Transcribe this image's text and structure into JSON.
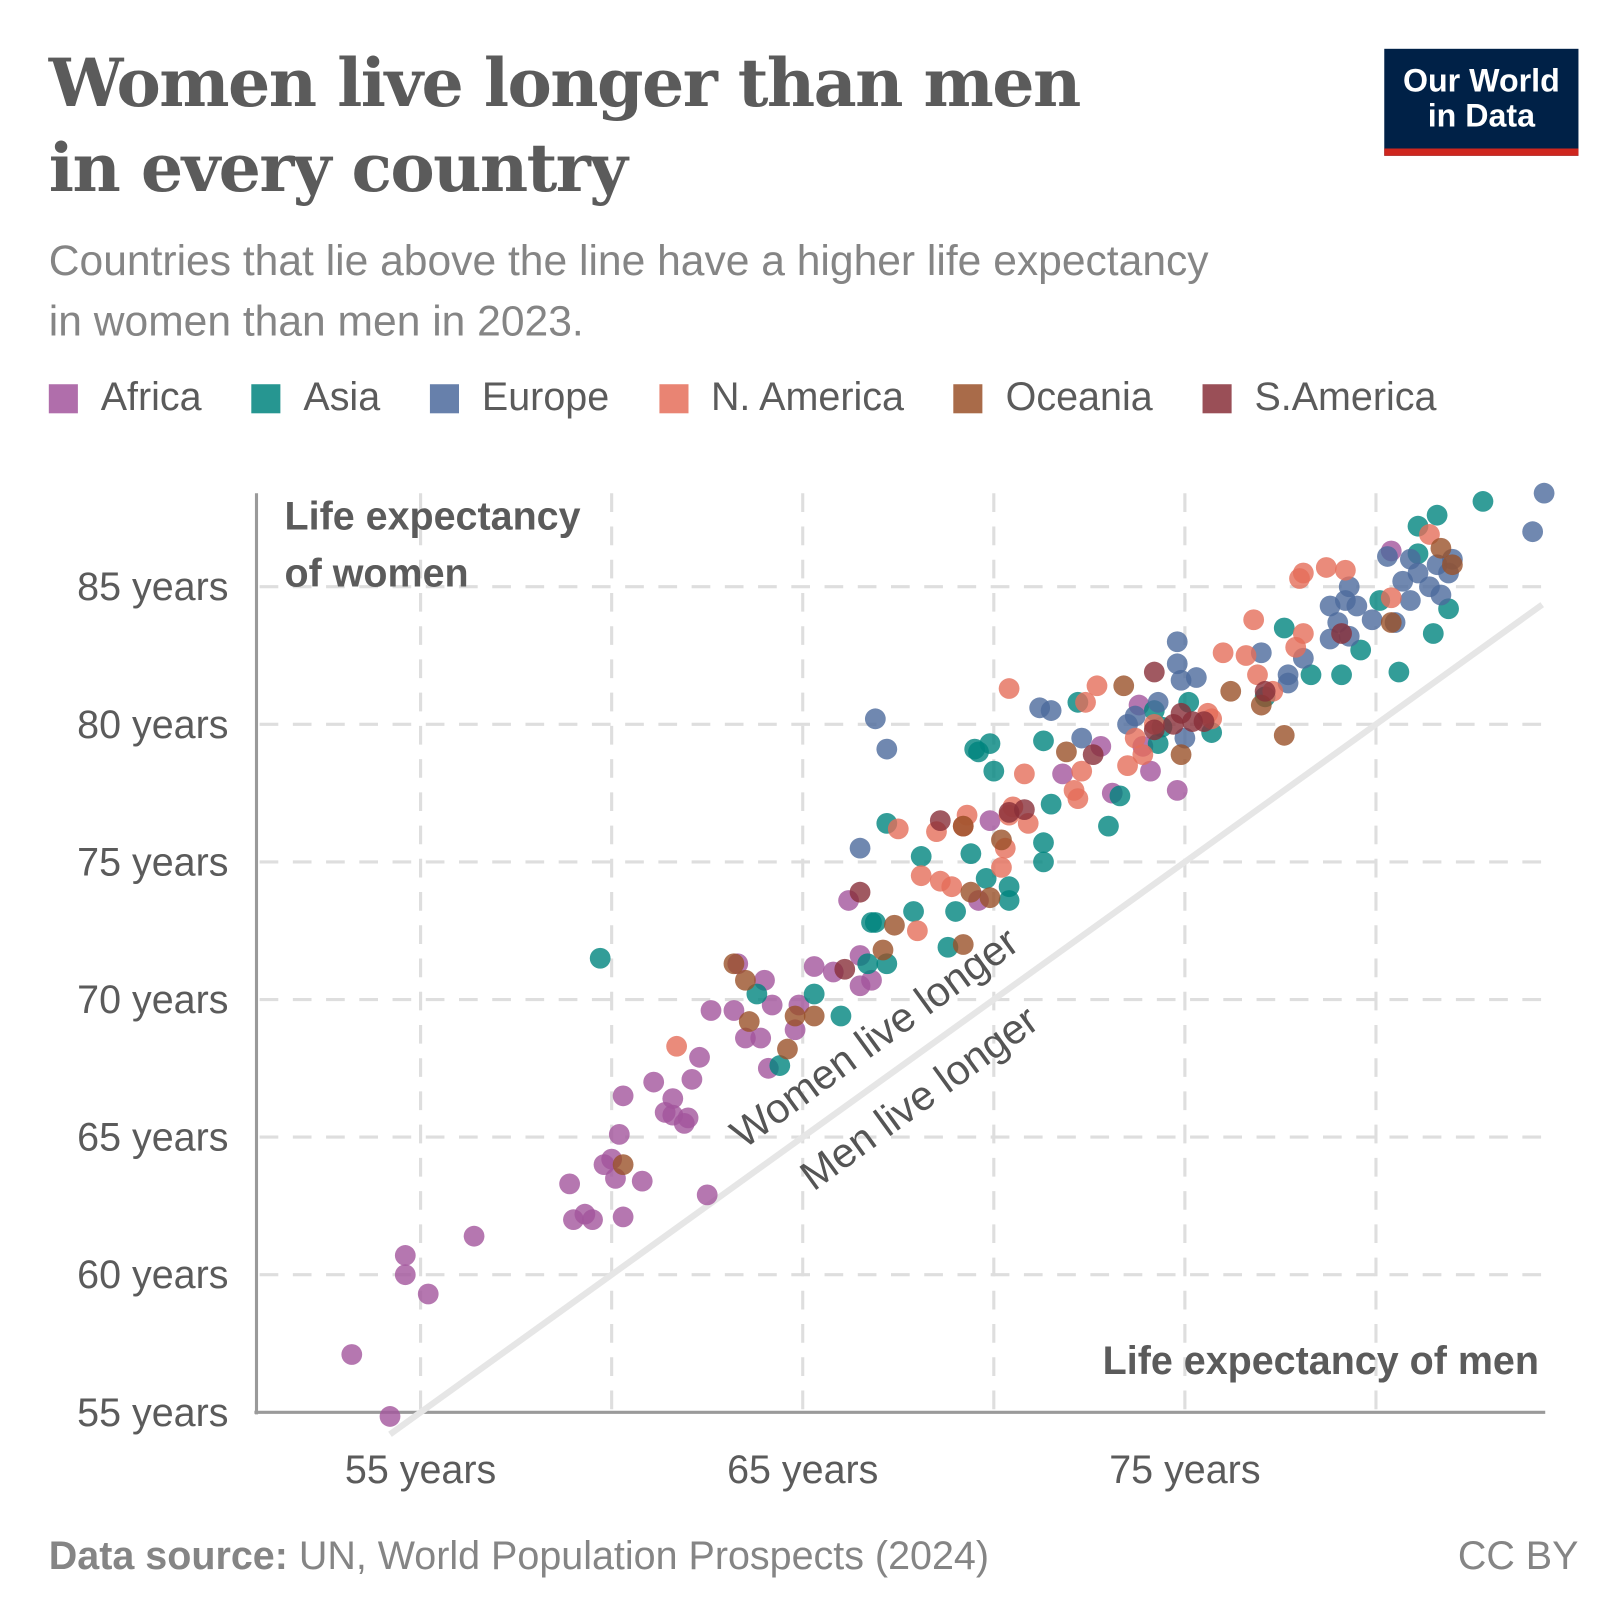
{
  "header": {
    "title_line1": "Women live longer than men",
    "title_line2": "in every country",
    "subtitle_line1": "Countries that lie above the line have a higher life expectancy",
    "subtitle_line2": "in women than men in 2023.",
    "logo_line1": "Our World",
    "logo_line2": "in Data",
    "logo_colors": {
      "background": "#002147",
      "accent": "#ce261e"
    }
  },
  "footer": {
    "source_label": "Data source:",
    "source_text": "UN, World Population Prospects (2024)",
    "license": "CC BY"
  },
  "chart_data": {
    "type": "scatter",
    "title": "Women live longer than men in every country",
    "xlabel": "Life expectancy of men",
    "ylabel_line1": "Life expectancy",
    "ylabel_line2": "of women",
    "xlim": [
      50.7,
      84.4
    ],
    "ylim": [
      55,
      88.4
    ],
    "x_ticks": [
      {
        "value": 55,
        "label": "55 years"
      },
      {
        "value": 65,
        "label": "65 years"
      },
      {
        "value": 75,
        "label": "75 years"
      }
    ],
    "x_grid": [
      55,
      60,
      65,
      70,
      75,
      80
    ],
    "y_ticks": [
      {
        "value": 55,
        "label": "55 years"
      },
      {
        "value": 60,
        "label": "60 years"
      },
      {
        "value": 65,
        "label": "65 years"
      },
      {
        "value": 70,
        "label": "70 years"
      },
      {
        "value": 75,
        "label": "75 years"
      },
      {
        "value": 80,
        "label": "80 years"
      },
      {
        "value": 85,
        "label": "85 years"
      }
    ],
    "grid": true,
    "legend_position": "top",
    "reference_line": {
      "type": "y=x",
      "label_above": "Women live longer",
      "label_below": "Men live longer"
    },
    "series": [
      {
        "name": "Africa",
        "color": "#a2559c",
        "points": [
          [
            53.2,
            57.1
          ],
          [
            54.2,
            54.85
          ],
          [
            54.6,
            60.7
          ],
          [
            54.6,
            60.0
          ],
          [
            55.2,
            59.3
          ],
          [
            56.4,
            61.4
          ],
          [
            58.9,
            63.3
          ],
          [
            59.0,
            62.0
          ],
          [
            59.3,
            62.2
          ],
          [
            59.5,
            62.0
          ],
          [
            60.3,
            62.1
          ],
          [
            59.8,
            64.0
          ],
          [
            60.0,
            64.2
          ],
          [
            60.1,
            63.5
          ],
          [
            60.2,
            65.1
          ],
          [
            60.3,
            66.5
          ],
          [
            60.8,
            63.4
          ],
          [
            62.5,
            62.9
          ],
          [
            61.1,
            67.0
          ],
          [
            61.4,
            65.9
          ],
          [
            61.6,
            66.4
          ],
          [
            61.6,
            65.8
          ],
          [
            61.9,
            65.5
          ],
          [
            62.0,
            65.7
          ],
          [
            62.1,
            67.1
          ],
          [
            62.6,
            69.6
          ],
          [
            62.3,
            67.9
          ],
          [
            63.2,
            69.6
          ],
          [
            63.3,
            71.3
          ],
          [
            63.5,
            68.6
          ],
          [
            63.9,
            68.6
          ],
          [
            64.0,
            70.7
          ],
          [
            64.1,
            67.5
          ],
          [
            64.2,
            69.8
          ],
          [
            64.8,
            68.9
          ],
          [
            64.9,
            69.8
          ],
          [
            65.3,
            71.2
          ],
          [
            65.8,
            71.0
          ],
          [
            66.2,
            73.6
          ],
          [
            66.5,
            71.6
          ],
          [
            66.5,
            70.5
          ],
          [
            66.8,
            70.7
          ],
          [
            69.6,
            73.6
          ],
          [
            69.9,
            76.5
          ],
          [
            71.8,
            78.2
          ],
          [
            72.8,
            79.2
          ],
          [
            73.1,
            77.5
          ],
          [
            73.8,
            80.7
          ],
          [
            73.9,
            79.2
          ],
          [
            74.1,
            78.3
          ],
          [
            74.8,
            77.6
          ],
          [
            80.4,
            86.3
          ]
        ]
      },
      {
        "name": "Asia",
        "color": "#00847e",
        "points": [
          [
            59.7,
            71.5
          ],
          [
            63.8,
            70.2
          ],
          [
            64.4,
            67.6
          ],
          [
            65.3,
            70.2
          ],
          [
            66.0,
            69.4
          ],
          [
            66.8,
            72.8
          ],
          [
            66.9,
            72.8
          ],
          [
            66.7,
            71.3
          ],
          [
            67.2,
            71.3
          ],
          [
            67.2,
            76.4
          ],
          [
            67.9,
            73.2
          ],
          [
            68.1,
            75.2
          ],
          [
            68.8,
            71.9
          ],
          [
            69.0,
            73.2
          ],
          [
            69.4,
            75.3
          ],
          [
            69.5,
            79.1
          ],
          [
            69.6,
            79.0
          ],
          [
            69.9,
            79.3
          ],
          [
            69.8,
            74.4
          ],
          [
            70.0,
            78.3
          ],
          [
            70.4,
            74.1
          ],
          [
            70.4,
            73.6
          ],
          [
            71.3,
            79.4
          ],
          [
            71.3,
            75.7
          ],
          [
            71.3,
            75.0
          ],
          [
            71.5,
            77.1
          ],
          [
            72.2,
            80.8
          ],
          [
            73.0,
            76.3
          ],
          [
            73.3,
            77.4
          ],
          [
            74.2,
            80.5
          ],
          [
            74.3,
            79.3
          ],
          [
            74.4,
            79.9
          ],
          [
            75.1,
            80.8
          ],
          [
            75.7,
            79.7
          ],
          [
            77.1,
            81.0
          ],
          [
            77.6,
            83.5
          ],
          [
            78.3,
            81.8
          ],
          [
            79.1,
            81.8
          ],
          [
            79.6,
            82.7
          ],
          [
            80.1,
            84.5
          ],
          [
            80.6,
            81.9
          ],
          [
            81.1,
            87.2
          ],
          [
            81.6,
            87.6
          ],
          [
            81.1,
            86.2
          ],
          [
            81.5,
            83.3
          ],
          [
            81.9,
            84.2
          ],
          [
            82.8,
            88.1
          ]
        ]
      },
      {
        "name": "Europe",
        "color": "#4c6a9c",
        "points": [
          [
            66.5,
            75.5
          ],
          [
            66.9,
            80.2
          ],
          [
            67.2,
            79.1
          ],
          [
            71.2,
            80.6
          ],
          [
            71.5,
            80.5
          ],
          [
            72.3,
            79.5
          ],
          [
            73.5,
            80.0
          ],
          [
            73.7,
            80.3
          ],
          [
            74.3,
            80.8
          ],
          [
            74.8,
            83.0
          ],
          [
            74.8,
            82.2
          ],
          [
            74.9,
            81.6
          ],
          [
            75.3,
            81.7
          ],
          [
            75.0,
            79.5
          ],
          [
            77.0,
            82.6
          ],
          [
            77.7,
            81.8
          ],
          [
            77.7,
            81.5
          ],
          [
            78.1,
            82.4
          ],
          [
            78.8,
            84.3
          ],
          [
            79.0,
            83.7
          ],
          [
            79.3,
            85.0
          ],
          [
            79.2,
            84.5
          ],
          [
            79.5,
            84.3
          ],
          [
            78.8,
            83.1
          ],
          [
            79.3,
            83.2
          ],
          [
            79.9,
            83.8
          ],
          [
            80.3,
            86.1
          ],
          [
            80.7,
            85.2
          ],
          [
            80.9,
            86.0
          ],
          [
            80.9,
            84.5
          ],
          [
            81.1,
            85.5
          ],
          [
            81.4,
            85.0
          ],
          [
            81.6,
            85.8
          ],
          [
            81.7,
            84.7
          ],
          [
            81.9,
            85.5
          ],
          [
            82.0,
            86.0
          ],
          [
            80.5,
            83.7
          ],
          [
            84.1,
            87.0
          ],
          [
            84.4,
            88.4
          ]
        ]
      },
      {
        "name": "N. America",
        "color": "#e56e5a",
        "points": [
          [
            61.7,
            68.3
          ],
          [
            67.5,
            76.2
          ],
          [
            68.0,
            72.5
          ],
          [
            68.1,
            74.5
          ],
          [
            68.5,
            76.1
          ],
          [
            68.6,
            74.3
          ],
          [
            68.9,
            74.1
          ],
          [
            69.2,
            76.3
          ],
          [
            69.3,
            76.7
          ],
          [
            70.2,
            74.8
          ],
          [
            70.3,
            75.5
          ],
          [
            70.4,
            76.7
          ],
          [
            70.5,
            77.0
          ],
          [
            70.8,
            78.2
          ],
          [
            70.9,
            76.4
          ],
          [
            70.4,
            81.3
          ],
          [
            72.1,
            77.6
          ],
          [
            72.2,
            77.3
          ],
          [
            72.3,
            78.3
          ],
          [
            72.4,
            80.8
          ],
          [
            72.7,
            81.4
          ],
          [
            73.5,
            78.5
          ],
          [
            73.7,
            79.5
          ],
          [
            73.9,
            78.9
          ],
          [
            74.2,
            80.0
          ],
          [
            75.6,
            80.4
          ],
          [
            75.7,
            80.2
          ],
          [
            76.0,
            82.6
          ],
          [
            76.6,
            82.5
          ],
          [
            76.8,
            83.8
          ],
          [
            76.9,
            81.8
          ],
          [
            77.3,
            81.2
          ],
          [
            77.9,
            82.8
          ],
          [
            78.1,
            83.3
          ],
          [
            78.0,
            85.3
          ],
          [
            78.1,
            85.5
          ],
          [
            78.7,
            85.7
          ],
          [
            79.2,
            85.6
          ],
          [
            80.4,
            84.6
          ],
          [
            81.4,
            86.9
          ]
        ]
      },
      {
        "name": "Oceania",
        "color": "#9a5129",
        "points": [
          [
            60.3,
            64.0
          ],
          [
            63.2,
            71.3
          ],
          [
            63.5,
            70.7
          ],
          [
            63.6,
            69.2
          ],
          [
            64.6,
            68.2
          ],
          [
            64.8,
            69.4
          ],
          [
            65.3,
            69.4
          ],
          [
            67.1,
            71.8
          ],
          [
            67.4,
            72.7
          ],
          [
            69.2,
            72.0
          ],
          [
            69.2,
            76.3
          ],
          [
            69.4,
            73.9
          ],
          [
            69.9,
            73.7
          ],
          [
            70.2,
            75.8
          ],
          [
            71.9,
            79.0
          ],
          [
            73.4,
            81.4
          ],
          [
            74.9,
            78.9
          ],
          [
            76.2,
            81.2
          ],
          [
            77.0,
            80.7
          ],
          [
            77.6,
            79.6
          ],
          [
            80.4,
            83.7
          ],
          [
            81.7,
            86.4
          ],
          [
            82.0,
            85.8
          ]
        ]
      },
      {
        "name": "S.America",
        "color": "#883039",
        "points": [
          [
            66.5,
            73.9
          ],
          [
            66.1,
            71.1
          ],
          [
            68.6,
            76.5
          ],
          [
            70.4,
            76.8
          ],
          [
            70.8,
            76.9
          ],
          [
            72.6,
            78.9
          ],
          [
            74.2,
            81.9
          ],
          [
            74.2,
            79.8
          ],
          [
            74.7,
            80.0
          ],
          [
            74.9,
            80.4
          ],
          [
            75.2,
            80.1
          ],
          [
            75.5,
            80.1
          ],
          [
            77.1,
            81.2
          ],
          [
            79.1,
            83.3
          ]
        ]
      }
    ]
  }
}
